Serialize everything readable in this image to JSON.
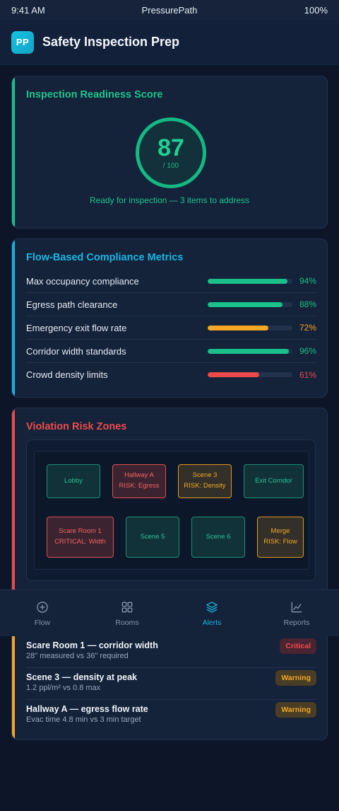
{
  "status": {
    "time": "9:41 AM",
    "carrier": "PressurePath",
    "battery": "100%"
  },
  "header": {
    "logo": "PP",
    "title": "Safety Inspection Prep"
  },
  "score": {
    "title": "Inspection Readiness Score",
    "value": "87",
    "max": "/ 100",
    "caption": "Ready for inspection — 3 items to address"
  },
  "metrics": {
    "title": "Flow-Based Compliance Metrics",
    "items": [
      {
        "label": "Max occupancy compliance",
        "value": "94%",
        "level": 0.94,
        "color": "#19c08a"
      },
      {
        "label": "Egress path clearance",
        "value": "88%",
        "level": 0.88,
        "color": "#19c08a"
      },
      {
        "label": "Emergency exit flow rate",
        "value": "72%",
        "level": 0.72,
        "color": "#f5a623"
      },
      {
        "label": "Corridor width standards",
        "value": "96%",
        "level": 0.96,
        "color": "#19c08a"
      },
      {
        "label": "Crowd density limits",
        "value": "61%",
        "level": 0.61,
        "color": "#ec4a4a"
      }
    ]
  },
  "zones": {
    "title": "Violation Risk Zones",
    "items": [
      {
        "name": "Lobby",
        "note": "",
        "status": "safe"
      },
      {
        "name": "Hallway A",
        "note": "RISK: Egress",
        "status": "danger"
      },
      {
        "name": "Scene 3",
        "note": "RISK: Density",
        "status": "warn"
      },
      {
        "name": "Exit Corridor",
        "note": "",
        "status": "safe"
      },
      {
        "name": "Scare Room 1",
        "note": "CRITICAL: Width",
        "status": "danger"
      },
      {
        "name": "Scene 5",
        "note": "",
        "status": "safe"
      },
      {
        "name": "Scene 6",
        "note": "",
        "status": "safe"
      },
      {
        "name": "Merge",
        "note": "RISK: Flow",
        "status": "warn"
      }
    ]
  },
  "alerts": {
    "items": [
      {
        "title": "Scare Room 1 — corridor width",
        "detail": "28\" measured vs 36\" required",
        "badge": "Critical",
        "severity": "critical"
      },
      {
        "title": "Scene 3 — density at peak",
        "detail": "1.2 ppl/m² vs 0.8 max",
        "badge": "Warning",
        "severity": "warning"
      },
      {
        "title": "Hallway A — egress flow rate",
        "detail": "Evac time 4.8 min vs 3 min target",
        "badge": "Warning",
        "severity": "warning"
      }
    ]
  },
  "nav": {
    "items": [
      {
        "label": "Flow",
        "icon": "plus-circle-icon",
        "active": false
      },
      {
        "label": "Rooms",
        "icon": "grid-icon",
        "active": false
      },
      {
        "label": "Alerts",
        "icon": "layers-icon",
        "active": true
      },
      {
        "label": "Reports",
        "icon": "chart-line-icon",
        "active": false
      }
    ]
  },
  "colors": {
    "background": "#0c1628",
    "card": "#14223a",
    "success": "#19c08a",
    "info": "#19b6e3",
    "warning": "#f5a623",
    "danger": "#ec4a4a"
  }
}
